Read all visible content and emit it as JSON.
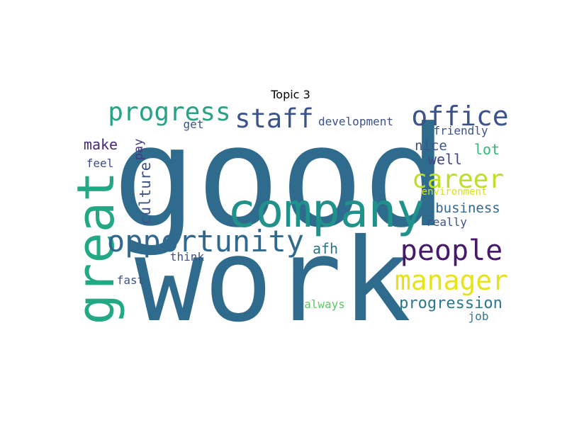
{
  "chart_data": {
    "type": "wordcloud",
    "title": "Topic 3",
    "words": [
      {
        "text": "good",
        "weight": 1.0,
        "color": "#2f6b8d"
      },
      {
        "text": "work",
        "weight": 0.98,
        "color": "#2f6b8d"
      },
      {
        "text": "company",
        "weight": 0.58,
        "color": "#21918c"
      },
      {
        "text": "great",
        "weight": 0.55,
        "color": "#22a884"
      },
      {
        "text": "opportunity",
        "weight": 0.36,
        "color": "#31688e"
      },
      {
        "text": "people",
        "weight": 0.33,
        "color": "#48186a"
      },
      {
        "text": "manager",
        "weight": 0.31,
        "color": "#e6e419"
      },
      {
        "text": "office",
        "weight": 0.3,
        "color": "#3b528b"
      },
      {
        "text": "progress",
        "weight": 0.3,
        "color": "#26a387"
      },
      {
        "text": "staff",
        "weight": 0.3,
        "color": "#3b528b"
      },
      {
        "text": "career",
        "weight": 0.28,
        "color": "#bddf26"
      },
      {
        "text": "culture",
        "weight": 0.18,
        "color": "#3b528b"
      },
      {
        "text": "progression",
        "weight": 0.18,
        "color": "#2a788e"
      },
      {
        "text": "business",
        "weight": 0.16,
        "color": "#31688e"
      },
      {
        "text": "afh",
        "weight": 0.16,
        "color": "#2c728e"
      },
      {
        "text": "make",
        "weight": 0.16,
        "color": "#482878"
      },
      {
        "text": "well",
        "weight": 0.16,
        "color": "#404688"
      },
      {
        "text": "lot",
        "weight": 0.15,
        "color": "#35b779"
      },
      {
        "text": "nice",
        "weight": 0.15,
        "color": "#3b528b"
      },
      {
        "text": "pay",
        "weight": 0.14,
        "color": "#443983"
      },
      {
        "text": "development",
        "weight": 0.13,
        "color": "#3b528b"
      },
      {
        "text": "friendly",
        "weight": 0.13,
        "color": "#3b528b"
      },
      {
        "text": "feel",
        "weight": 0.13,
        "color": "#3e4989"
      },
      {
        "text": "fast",
        "weight": 0.13,
        "color": "#3b528b"
      },
      {
        "text": "job",
        "weight": 0.13,
        "color": "#2a788e"
      },
      {
        "text": "really",
        "weight": 0.13,
        "color": "#3b528b"
      },
      {
        "text": "always",
        "weight": 0.12,
        "color": "#5ec962"
      },
      {
        "text": "get",
        "weight": 0.12,
        "color": "#3b528b"
      },
      {
        "text": "think",
        "weight": 0.12,
        "color": "#3b528b"
      },
      {
        "text": "environment",
        "weight": 0.12,
        "color": "#d8e219"
      }
    ]
  }
}
